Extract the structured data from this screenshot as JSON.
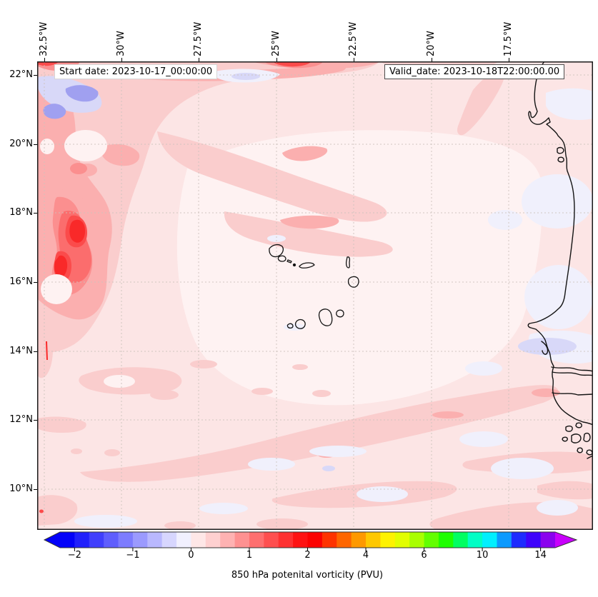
{
  "annotations": {
    "start": "Start date: 2023-10-17_00:00:00",
    "valid": "Valid_date: 2023-10-18T22:00:00.00"
  },
  "chart_data": {
    "type": "filled_contour_map",
    "description_visible": "Filled contour field over eastern tropical Atlantic with Cape Verde islands and West African coastline",
    "x_axis": {
      "ticks": [
        "32.5°W",
        "30°W",
        "27.5°W",
        "25°W",
        "22.5°W",
        "20°W",
        "17.5°W"
      ],
      "px": [
        10,
        118,
        226,
        335,
        443,
        552,
        660
      ]
    },
    "y_axis": {
      "ticks": [
        "22°N",
        "20°N",
        "18°N",
        "16°N",
        "14°N",
        "12°N",
        "10°N"
      ],
      "px": [
        19,
        116,
        212,
        309,
        406,
        502,
        599
      ]
    },
    "colorbar": {
      "label": "850 hPa potenital vorticity (PVU)",
      "tick_labels": [
        "−2",
        "−1",
        "0",
        "1",
        "2",
        "4",
        "6",
        "10",
        "14"
      ],
      "tick_boundary_indices": [
        1,
        5,
        9,
        13,
        17,
        21,
        25,
        29,
        33
      ],
      "segment_colors": [
        "#0402F9",
        "#2120FB",
        "#403FFC",
        "#5F5EFD",
        "#7D7CFE",
        "#9B9AFE",
        "#B9B8FE",
        "#D7D6FE",
        "#F1F0FE",
        "#FEE7E7",
        "#FED0D0",
        "#FEB2B2",
        "#FE9191",
        "#FE6F6F",
        "#FE4F4F",
        "#FE3131",
        "#FE1212",
        "#FB0201",
        "#FE3300",
        "#FE6600",
        "#FE9900",
        "#FEC801",
        "#FEF201",
        "#E2FE01",
        "#A9FE01",
        "#63FE01",
        "#1FFE01",
        "#01FE62",
        "#01FEC5",
        "#01EFFE",
        "#0C9AFE",
        "#1D2BFE",
        "#3E02FB",
        "#8A02EE"
      ],
      "extend_left_color": "#0402F9",
      "extend_right_color": "#C801FB"
    },
    "palette": {
      "base": "#FCE5E5",
      "light": "#FEF2F2",
      "pink1": "#FACDCD",
      "pink2": "#FBAFAF",
      "pink3": "#FB8F8F",
      "pink4": "#FB6D6D",
      "pink5": "#FB4B4B",
      "pink6": "#F92929",
      "lav1": "#F0F0FC",
      "lav2": "#D8D8F8",
      "lav3": "#A0A0F0",
      "grid": "#CDC3BD",
      "coast": "#141414",
      "frame": "#1A1A1A"
    }
  }
}
